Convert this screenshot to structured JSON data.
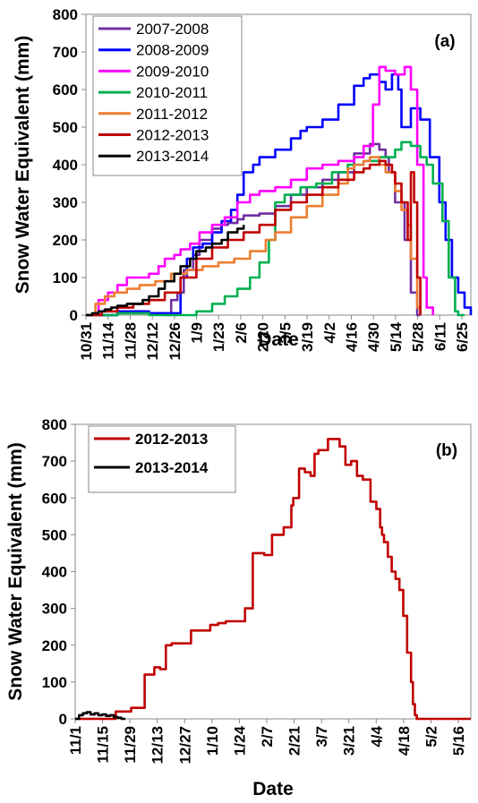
{
  "chart_data": [
    {
      "panel": "a",
      "type": "line",
      "panel_label": "(a)",
      "xlabel": "Date",
      "ylabel": "Snow Water Equivalent (mm)",
      "ylim": [
        0,
        800
      ],
      "yticks": [
        0,
        100,
        200,
        300,
        400,
        500,
        600,
        700,
        800
      ],
      "xticks": [
        "10/31",
        "11/14",
        "11/28",
        "12/12",
        "12/26",
        "1/9",
        "1/23",
        "2/6",
        "2/20",
        "3/5",
        "3/19",
        "4/2",
        "4/16",
        "4/30",
        "5/14",
        "5/28",
        "6/11",
        "6/25"
      ],
      "x_range_days": [
        0,
        244
      ],
      "legend_position": "top-left",
      "series": [
        {
          "name": "2007-2008",
          "color": "#7030A0",
          "x": [
            0,
            20,
            40,
            50,
            54,
            58,
            62,
            68,
            72,
            80,
            86,
            90,
            96,
            100,
            110,
            120,
            130,
            140,
            150,
            160,
            170,
            180,
            186,
            190,
            192,
            196,
            202,
            206,
            210,
            212
          ],
          "y": [
            0,
            10,
            5,
            0,
            40,
            60,
            120,
            160,
            200,
            230,
            240,
            245,
            255,
            265,
            270,
            290,
            320,
            340,
            360,
            380,
            430,
            455,
            440,
            420,
            380,
            300,
            200,
            60,
            0,
            0
          ]
        },
        {
          "name": "2008-2009",
          "color": "#0000FF",
          "x": [
            0,
            20,
            40,
            60,
            64,
            68,
            74,
            80,
            86,
            92,
            96,
            100,
            106,
            110,
            120,
            130,
            136,
            140,
            150,
            160,
            170,
            176,
            180,
            186,
            190,
            194,
            198,
            200,
            206,
            212,
            218,
            224,
            228,
            232,
            236,
            240,
            244
          ],
          "y": [
            0,
            10,
            5,
            100,
            150,
            180,
            190,
            220,
            250,
            280,
            320,
            380,
            400,
            420,
            440,
            470,
            490,
            500,
            520,
            560,
            610,
            630,
            640,
            620,
            600,
            640,
            600,
            500,
            550,
            520,
            420,
            300,
            200,
            100,
            60,
            20,
            0
          ]
        },
        {
          "name": "2009-2010",
          "color": "#FF00FF",
          "x": [
            0,
            8,
            14,
            20,
            26,
            34,
            40,
            46,
            50,
            56,
            60,
            66,
            72,
            80,
            88,
            96,
            104,
            110,
            120,
            130,
            140,
            150,
            160,
            170,
            176,
            182,
            186,
            190,
            196,
            202,
            206,
            210,
            214,
            216,
            220
          ],
          "y": [
            0,
            40,
            60,
            80,
            100,
            100,
            110,
            130,
            150,
            160,
            175,
            190,
            220,
            240,
            260,
            300,
            320,
            330,
            340,
            360,
            390,
            400,
            410,
            420,
            450,
            560,
            660,
            650,
            640,
            660,
            600,
            400,
            100,
            20,
            0
          ]
        },
        {
          "name": "2010-2011",
          "color": "#00B050",
          "x": [
            0,
            20,
            40,
            60,
            70,
            80,
            88,
            96,
            104,
            110,
            116,
            120,
            126,
            136,
            146,
            156,
            166,
            176,
            186,
            196,
            200,
            206,
            212,
            216,
            220,
            226,
            230,
            234,
            236,
            240
          ],
          "y": [
            0,
            5,
            0,
            0,
            10,
            30,
            50,
            70,
            100,
            140,
            200,
            300,
            320,
            340,
            350,
            380,
            400,
            410,
            420,
            440,
            460,
            450,
            420,
            400,
            350,
            250,
            100,
            10,
            0,
            0
          ]
        },
        {
          "name": "2011-2012",
          "color": "#ED7D31",
          "x": [
            0,
            6,
            12,
            18,
            26,
            34,
            44,
            54,
            64,
            74,
            84,
            94,
            104,
            114,
            120,
            130,
            140,
            150,
            160,
            166,
            170,
            176,
            180,
            186,
            190,
            196,
            200,
            204,
            206,
            210,
            212
          ],
          "y": [
            0,
            30,
            50,
            60,
            70,
            80,
            90,
            110,
            120,
            130,
            140,
            150,
            170,
            200,
            220,
            260,
            290,
            320,
            350,
            390,
            400,
            410,
            420,
            400,
            380,
            330,
            280,
            240,
            150,
            20,
            0
          ]
        },
        {
          "name": "2012-2013",
          "color": "#C00000",
          "x": [
            0,
            10,
            20,
            30,
            40,
            50,
            60,
            70,
            80,
            90,
            100,
            110,
            120,
            130,
            140,
            150,
            160,
            170,
            176,
            180,
            186,
            190,
            194,
            196,
            200,
            204,
            206,
            208,
            210,
            212
          ],
          "y": [
            0,
            10,
            20,
            30,
            40,
            60,
            100,
            150,
            180,
            200,
            220,
            240,
            280,
            300,
            320,
            340,
            360,
            380,
            390,
            400,
            410,
            400,
            380,
            350,
            300,
            200,
            380,
            300,
            100,
            0
          ]
        },
        {
          "name": "2013-2014",
          "color": "#000000",
          "x": [
            0,
            4,
            8,
            12,
            16,
            20,
            26,
            30,
            36,
            40,
            46,
            50,
            56,
            60,
            66,
            70,
            76,
            80,
            86,
            90,
            96,
            100
          ],
          "y": [
            0,
            5,
            10,
            15,
            20,
            25,
            30,
            30,
            40,
            50,
            70,
            90,
            110,
            130,
            150,
            170,
            180,
            190,
            200,
            220,
            230,
            240
          ]
        }
      ]
    },
    {
      "panel": "b",
      "type": "line",
      "panel_label": "(b)",
      "xlabel": "Date",
      "ylabel": "Snow Water Equivalent (mm)",
      "ylim": [
        0,
        800
      ],
      "yticks": [
        0,
        100,
        200,
        300,
        400,
        500,
        600,
        700,
        800
      ],
      "xticks": [
        "11/1",
        "11/15",
        "11/29",
        "12/13",
        "12/27",
        "1/10",
        "1/24",
        "2/7",
        "2/21",
        "3/7",
        "3/21",
        "4/4",
        "4/18",
        "5/2",
        "5/16"
      ],
      "x_range_days": [
        0,
        205
      ],
      "legend_position": "top-left",
      "series": [
        {
          "name": "2012-2013",
          "color": "#C00000",
          "x": [
            0,
            14,
            20,
            21,
            28,
            29,
            35,
            36,
            41,
            43,
            44,
            47,
            50,
            56,
            60,
            64,
            70,
            74,
            77,
            78,
            84,
            88,
            92,
            98,
            102,
            108,
            112,
            113,
            116,
            119,
            122,
            124,
            126,
            128,
            131,
            134,
            137,
            140,
            143,
            146,
            149,
            153,
            156,
            158,
            159,
            160,
            162,
            164,
            166,
            168,
            170,
            172,
            174,
            175,
            176,
            177,
            178,
            179,
            180,
            182,
            185,
            190,
            196,
            205
          ],
          "y": [
            0,
            0,
            0,
            20,
            20,
            30,
            30,
            120,
            140,
            140,
            135,
            200,
            205,
            205,
            240,
            240,
            255,
            260,
            260,
            265,
            265,
            300,
            450,
            445,
            500,
            520,
            580,
            600,
            680,
            670,
            660,
            720,
            730,
            730,
            760,
            760,
            740,
            690,
            700,
            660,
            650,
            590,
            570,
            520,
            500,
            480,
            440,
            400,
            380,
            350,
            280,
            180,
            100,
            40,
            10,
            0,
            0,
            0,
            0,
            0,
            0,
            0,
            0,
            0
          ]
        },
        {
          "name": "2013-2014",
          "color": "#000000",
          "x": [
            0,
            2,
            4,
            6,
            8,
            10,
            12,
            14,
            16,
            18,
            20,
            22,
            24,
            25,
            26
          ],
          "y": [
            0,
            10,
            15,
            18,
            12,
            15,
            10,
            12,
            8,
            10,
            5,
            3,
            0,
            0,
            0
          ]
        }
      ]
    }
  ]
}
